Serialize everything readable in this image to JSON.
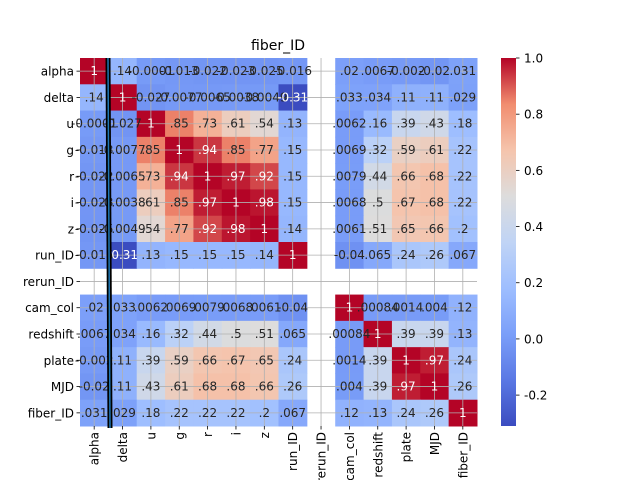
{
  "chart_data": {
    "type": "heatmap",
    "title": "fiber_ID",
    "row_labels": [
      "alpha",
      "delta",
      "u",
      "g",
      "r",
      "i",
      "z",
      "run_ID",
      "rerun_ID",
      "cam_col",
      "redshift",
      "plate",
      "MJD",
      "fiber_ID"
    ],
    "col_labels": [
      "alpha",
      "delta",
      "u",
      "g",
      "r",
      "i",
      "z",
      "run_ID",
      "rerun_ID",
      "cam_col",
      "redshift",
      "plate",
      "MJD",
      "fiber_ID"
    ],
    "values": [
      [
        1,
        0.14,
        -0.0001,
        -0.013,
        -0.022,
        -0.023,
        -0.025,
        -0.016,
        null,
        0.02,
        0.0067,
        -0.002,
        -0.02,
        0.031
      ],
      [
        0.14,
        1,
        -0.027,
        -0.0077,
        -0.0065,
        -0.0038,
        -0.0049,
        -0.31,
        null,
        0.033,
        0.034,
        0.11,
        0.11,
        0.029
      ],
      [
        -0.0001,
        -0.027,
        1,
        0.85,
        0.73,
        0.61,
        0.54,
        0.13,
        null,
        0.0062,
        0.16,
        0.39,
        0.43,
        0.18
      ],
      [
        -0.013,
        -0.0077,
        0.85,
        1,
        0.94,
        0.85,
        0.77,
        0.15,
        null,
        0.0069,
        0.32,
        0.59,
        0.61,
        0.22
      ],
      [
        -0.022,
        -0.0065,
        0.73,
        0.94,
        1,
        0.97,
        0.92,
        0.15,
        null,
        0.0079,
        0.44,
        0.66,
        0.68,
        0.22
      ],
      [
        -0.023,
        -0.0038,
        0.61,
        0.85,
        0.97,
        1,
        0.98,
        0.15,
        null,
        0.0068,
        0.5,
        0.67,
        0.68,
        0.22
      ],
      [
        -0.025,
        -0.0049,
        0.54,
        0.77,
        0.92,
        0.98,
        1,
        0.14,
        null,
        0.0061,
        0.51,
        0.65,
        0.66,
        0.2
      ],
      [
        -0.016,
        -0.31,
        0.13,
        0.15,
        0.15,
        0.15,
        0.14,
        1,
        null,
        -0.04,
        0.065,
        0.24,
        0.26,
        0.067
      ],
      [
        null,
        null,
        null,
        null,
        null,
        null,
        null,
        null,
        null,
        null,
        null,
        null,
        null,
        null
      ],
      [
        0.02,
        0.033,
        0.0062,
        0.0069,
        0.0079,
        0.0068,
        0.0061,
        -0.04,
        null,
        1,
        0.00084,
        0.0014,
        0.004,
        0.12
      ],
      [
        0.0067,
        0.034,
        0.16,
        0.32,
        0.44,
        0.5,
        0.51,
        0.065,
        null,
        0.00084,
        1,
        0.39,
        0.39,
        0.13
      ],
      [
        -0.002,
        0.11,
        0.39,
        0.59,
        0.66,
        0.67,
        0.65,
        0.24,
        null,
        0.0014,
        0.39,
        1,
        0.97,
        0.24
      ],
      [
        -0.02,
        0.11,
        0.43,
        0.61,
        0.68,
        0.68,
        0.66,
        0.26,
        null,
        0.004,
        0.39,
        0.97,
        1,
        0.26
      ],
      [
        0.031,
        0.029,
        0.18,
        0.22,
        0.22,
        0.22,
        0.2,
        0.067,
        null,
        0.12,
        0.13,
        0.24,
        0.26,
        1
      ]
    ],
    "colormap": "coolwarm",
    "vmin": -0.31,
    "vmax": 1.0,
    "colorbar_ticks": [
      "1.0",
      "0.8",
      "0.6",
      "0.4",
      "0.2",
      "0.0",
      "-0.2"
    ],
    "colorbar_tick_values": [
      1.0,
      0.8,
      0.6,
      0.4,
      0.2,
      0.0,
      -0.2
    ],
    "grid": true,
    "legend": "colorbar-right"
  }
}
